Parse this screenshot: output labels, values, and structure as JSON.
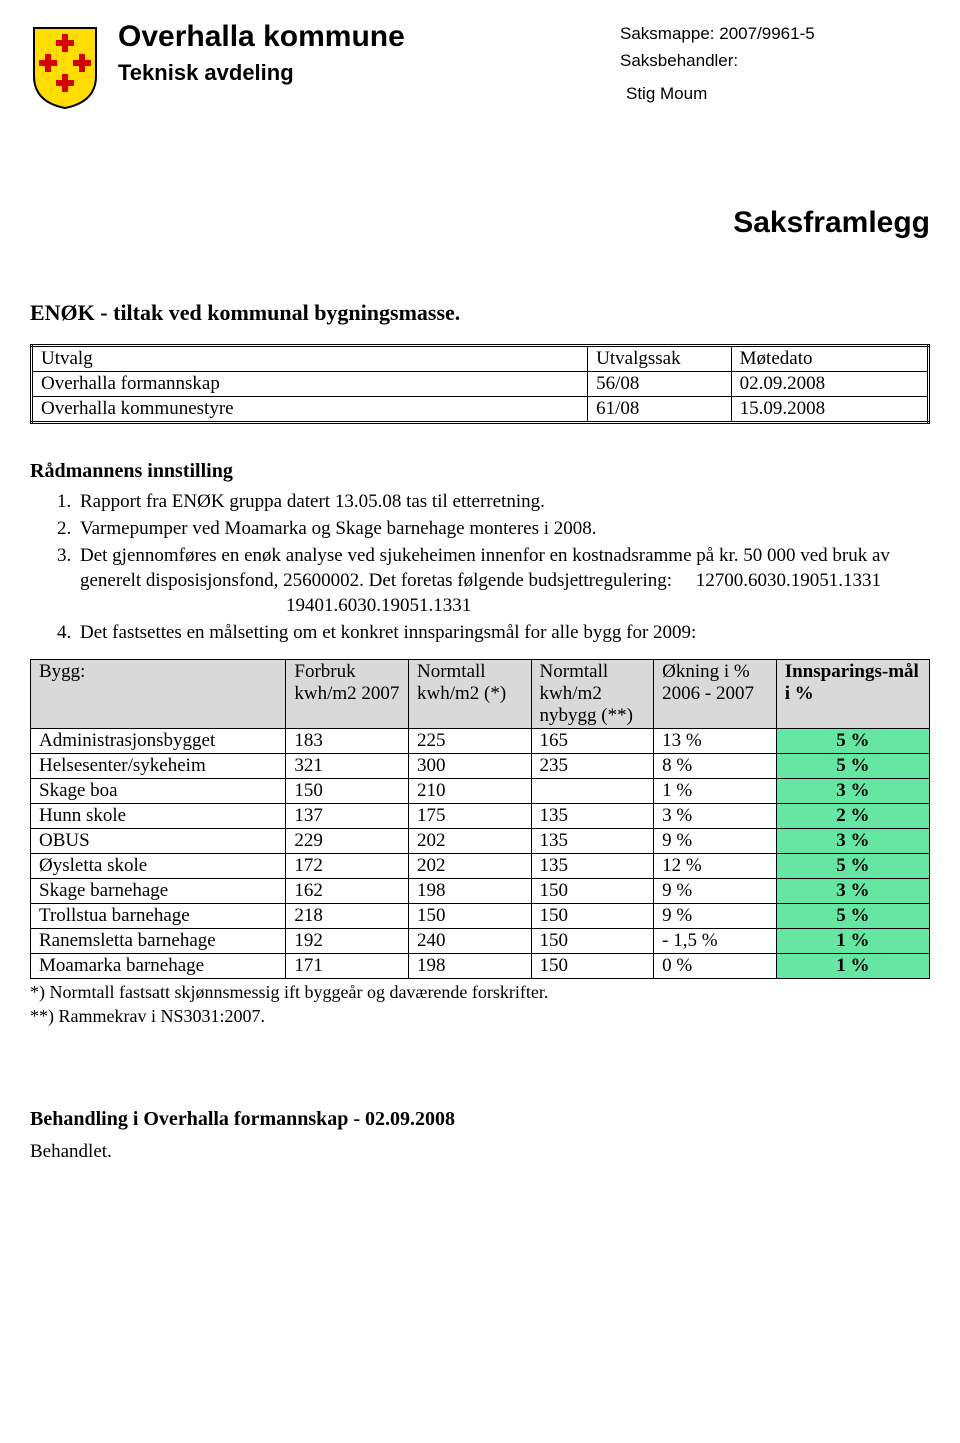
{
  "colors": {
    "header_bg": "#d9d9d9",
    "goal_bg": "#66e6a3",
    "shield_yellow": "#ffdd00",
    "shield_red": "#d40000",
    "border": "#000000",
    "text": "#000000"
  },
  "typography": {
    "body_family": "Times New Roman",
    "body_size_pt": 14,
    "sans_family": "Arial",
    "h1_size_pt": 22,
    "h2_size_pt": 16
  },
  "header": {
    "org_name": "Overhalla kommune",
    "dept_name": "Teknisk avdeling",
    "meta": {
      "saksmappe_label": "Saksmappe:",
      "saksmappe_value": "2007/9961-5",
      "saksbehandler_label": "Saksbehandler:",
      "officer": "Stig Moum"
    },
    "doc_type": "Saksframlegg"
  },
  "case_title": "ENØK - tiltak ved kommunal bygningsmasse.",
  "meeting_table": {
    "columns": [
      "Utvalg",
      "Utvalgssak",
      "Møtedato"
    ],
    "rows": [
      [
        "Overhalla formannskap",
        "56/08",
        "02.09.2008"
      ],
      [
        "Overhalla kommunestyre",
        "61/08",
        "15.09.2008"
      ]
    ]
  },
  "recommendation": {
    "heading": "Rådmannens innstilling",
    "items": [
      "Rapport fra ENØK gruppa datert 13.05.08 tas til etterretning.",
      "Varmepumper ved Moamarka og Skage barnehage monteres i 2008.",
      "Det gjennomføres en enøk analyse ved sjukeheimen innenfor en kostnadsramme på kr. 50 000 ved bruk av generelt disposisjonsfond, 25600002. Det foretas følgende budsjettregulering:  12700.6030.19051.1331",
      "Det fastsettes en målsetting om et konkret innsparingsmål for alle bygg for 2009:"
    ],
    "item3_line2": "19401.6030.19051.1331"
  },
  "data_table": {
    "type": "table",
    "columns": [
      "Bygg:",
      "Forbruk kwh/m2 2007",
      "Normtall kwh/m2 (*)",
      "Normtall kwh/m2 nybygg (**)",
      "Økning i %  2006 - 2007",
      "Innsparings-mål i %"
    ],
    "rows": [
      [
        "Administrasjonsbygget",
        "183",
        "225",
        "165",
        "13 %",
        "5 %"
      ],
      [
        "Helsesenter/sykeheim",
        "321",
        "300",
        "235",
        "8 %",
        "5 %"
      ],
      [
        "Skage boa",
        "150",
        "210",
        "",
        "1 %",
        "3 %"
      ],
      [
        "Hunn skole",
        "137",
        "175",
        "135",
        "3 %",
        "2 %"
      ],
      [
        "OBUS",
        "229",
        "202",
        "135",
        "9 %",
        "3 %"
      ],
      [
        "Øysletta skole",
        "172",
        "202",
        "135",
        "12 %",
        "5 %"
      ],
      [
        "Skage barnehage",
        "162",
        "198",
        "150",
        "9 %",
        "3 %"
      ],
      [
        "Trollstua barnehage",
        "218",
        "150",
        "150",
        "9 %",
        "5 %"
      ],
      [
        "Ranemsletta barnehage",
        "192",
        "240",
        "150",
        "- 1,5 %",
        "1 %"
      ],
      [
        "Moamarka barnehage",
        "171",
        "198",
        "150",
        "0 %",
        "1 %"
      ]
    ]
  },
  "footnotes": [
    "*) Normtall fastsatt skjønnsmessig ift byggeår og daværende forskrifter.",
    "**) Rammekrav i NS3031:2007."
  ],
  "treatment": {
    "heading": "Behandling i Overhalla formannskap - 02.09.2008",
    "body": "Behandlet."
  }
}
